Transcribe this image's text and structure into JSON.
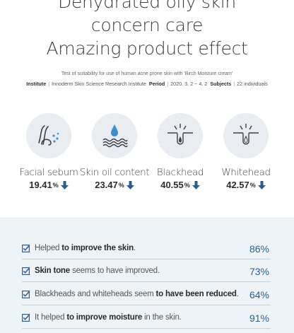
{
  "headline": {
    "line1": "Dehydrated oily skin",
    "line2": "concern care",
    "line3": "Amazing product effect"
  },
  "test": {
    "description": "Test of suitability for use of human acne prone skin with 'Birch Moisture cream'",
    "institute_label": "Institute",
    "institute_value": "Innoderm Skin Science Research Institute",
    "period_label": "Period",
    "period_value": "2020. 3. 2 ~ 4. 2",
    "subjects_label": "Subjects",
    "subjects_value": "22 individuals"
  },
  "stats": [
    {
      "icon": "hair-follicle-icon",
      "label": "Facial sebum",
      "value": "19.41",
      "unit": "%",
      "trend": "down"
    },
    {
      "icon": "oil-drop-icon",
      "label": "Skin oil content",
      "value": "23.47",
      "unit": "%",
      "trend": "down"
    },
    {
      "icon": "blackhead-pore-icon",
      "label": "Blackhead",
      "value": "40.55",
      "unit": "%",
      "trend": "down"
    },
    {
      "icon": "whitehead-pore-icon",
      "label": "Whitehead",
      "value": "42.57",
      "unit": "%",
      "trend": "down"
    }
  ],
  "results": [
    {
      "pre": "Helped ",
      "bold": "to improve the skin",
      "post": ".",
      "percent": "86%"
    },
    {
      "pre": "",
      "bold": "Skin tone",
      "post": " seems to have improved.",
      "percent": "73%"
    },
    {
      "pre": "Blackheads and whiteheads seem ",
      "bold": "to have been reduced",
      "post": ".",
      "percent": "64%"
    },
    {
      "pre": "It helped ",
      "bold": "to improve moisture",
      "post": " in the skin.",
      "percent": "91%"
    }
  ],
  "colors": {
    "accent": "#2c5d8c",
    "icon_circle": "#e9edf2",
    "results_bg": "#eef3f7",
    "arrow": "#2c5d8c"
  }
}
